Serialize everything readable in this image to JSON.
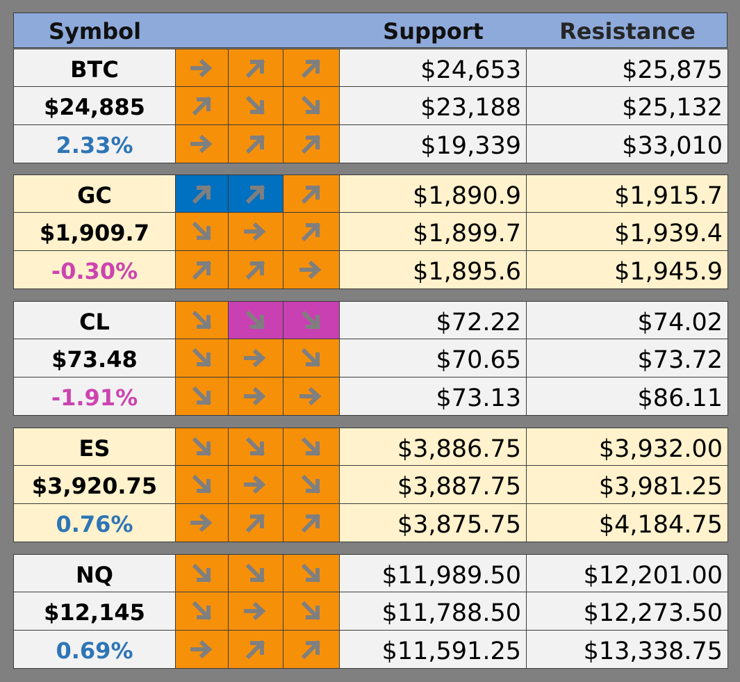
{
  "header": {
    "symbol": "Symbol",
    "support": "Support",
    "resistance": "Resistance"
  },
  "colors": {
    "header_bg": "#8eaadb",
    "row_gray": "#f2f2f2",
    "row_cream": "#fff2cc",
    "arrow_orange": "#f79009",
    "arrow_blue": "#0070c0",
    "arrow_magenta": "#c940b3",
    "arrow_glyph": "#7f7f7f",
    "positive_pct": "#2e75b6",
    "negative_pct": "#cc44b0",
    "background": "#808080"
  },
  "groups": [
    {
      "bg": "#f2f2f2",
      "rows": [
        {
          "label": "BTC",
          "arrows": [
            [
              "right",
              "#f79009"
            ],
            [
              "up-right",
              "#f79009"
            ],
            [
              "up-right",
              "#f79009"
            ]
          ],
          "support": "$24,653",
          "resistance": "$25,875"
        },
        {
          "label": "$24,885",
          "arrows": [
            [
              "up-right",
              "#f79009"
            ],
            [
              "down-right",
              "#f79009"
            ],
            [
              "down-right",
              "#f79009"
            ]
          ],
          "support": "$23,188",
          "resistance": "$25,132"
        },
        {
          "label": "2.33%",
          "pct": "pos",
          "arrows": [
            [
              "right",
              "#f79009"
            ],
            [
              "up-right",
              "#f79009"
            ],
            [
              "up-right",
              "#f79009"
            ]
          ],
          "support": "$19,339",
          "resistance": "$33,010"
        }
      ]
    },
    {
      "bg": "#fff2cc",
      "rows": [
        {
          "label": "GC",
          "arrows": [
            [
              "up-right",
              "#0070c0"
            ],
            [
              "up-right",
              "#0070c0"
            ],
            [
              "up-right",
              "#f79009"
            ]
          ],
          "support": "$1,890.9",
          "resistance": "$1,915.7"
        },
        {
          "label": "$1,909.7",
          "arrows": [
            [
              "down-right",
              "#f79009"
            ],
            [
              "right",
              "#f79009"
            ],
            [
              "up-right",
              "#f79009"
            ]
          ],
          "support": "$1,899.7",
          "resistance": "$1,939.4"
        },
        {
          "label": "-0.30%",
          "pct": "neg",
          "arrows": [
            [
              "up-right",
              "#f79009"
            ],
            [
              "up-right",
              "#f79009"
            ],
            [
              "right",
              "#f79009"
            ]
          ],
          "support": "$1,895.6",
          "resistance": "$1,945.9"
        }
      ]
    },
    {
      "bg": "#f2f2f2",
      "rows": [
        {
          "label": "CL",
          "arrows": [
            [
              "down-right",
              "#f79009"
            ],
            [
              "down-right",
              "#c940b3"
            ],
            [
              "down-right",
              "#c940b3"
            ]
          ],
          "support": "$72.22",
          "resistance": "$74.02"
        },
        {
          "label": "$73.48",
          "arrows": [
            [
              "down-right",
              "#f79009"
            ],
            [
              "right",
              "#f79009"
            ],
            [
              "down-right",
              "#f79009"
            ]
          ],
          "support": "$70.65",
          "resistance": "$73.72"
        },
        {
          "label": "-1.91%",
          "pct": "neg",
          "arrows": [
            [
              "down-right",
              "#f79009"
            ],
            [
              "right",
              "#f79009"
            ],
            [
              "right",
              "#f79009"
            ]
          ],
          "support": "$73.13",
          "resistance": "$86.11"
        }
      ]
    },
    {
      "bg": "#fff2cc",
      "rows": [
        {
          "label": "ES",
          "arrows": [
            [
              "down-right",
              "#f79009"
            ],
            [
              "down-right",
              "#f79009"
            ],
            [
              "down-right",
              "#f79009"
            ]
          ],
          "support": "$3,886.75",
          "resistance": "$3,932.00"
        },
        {
          "label": "$3,920.75",
          "arrows": [
            [
              "down-right",
              "#f79009"
            ],
            [
              "right",
              "#f79009"
            ],
            [
              "down-right",
              "#f79009"
            ]
          ],
          "support": "$3,887.75",
          "resistance": "$3,981.25"
        },
        {
          "label": "0.76%",
          "pct": "pos",
          "arrows": [
            [
              "right",
              "#f79009"
            ],
            [
              "up-right",
              "#f79009"
            ],
            [
              "up-right",
              "#f79009"
            ]
          ],
          "support": "$3,875.75",
          "resistance": "$4,184.75"
        }
      ]
    },
    {
      "bg": "#f2f2f2",
      "rows": [
        {
          "label": "NQ",
          "arrows": [
            [
              "down-right",
              "#f79009"
            ],
            [
              "down-right",
              "#f79009"
            ],
            [
              "down-right",
              "#f79009"
            ]
          ],
          "support": "$11,989.50",
          "resistance": "$12,201.00"
        },
        {
          "label": "$12,145",
          "arrows": [
            [
              "down-right",
              "#f79009"
            ],
            [
              "right",
              "#f79009"
            ],
            [
              "down-right",
              "#f79009"
            ]
          ],
          "support": "$11,788.50",
          "resistance": "$12,273.50"
        },
        {
          "label": "0.69%",
          "pct": "pos",
          "arrows": [
            [
              "right",
              "#f79009"
            ],
            [
              "up-right",
              "#f79009"
            ],
            [
              "up-right",
              "#f79009"
            ]
          ],
          "support": "$11,591.25",
          "resistance": "$13,338.75"
        }
      ]
    }
  ]
}
